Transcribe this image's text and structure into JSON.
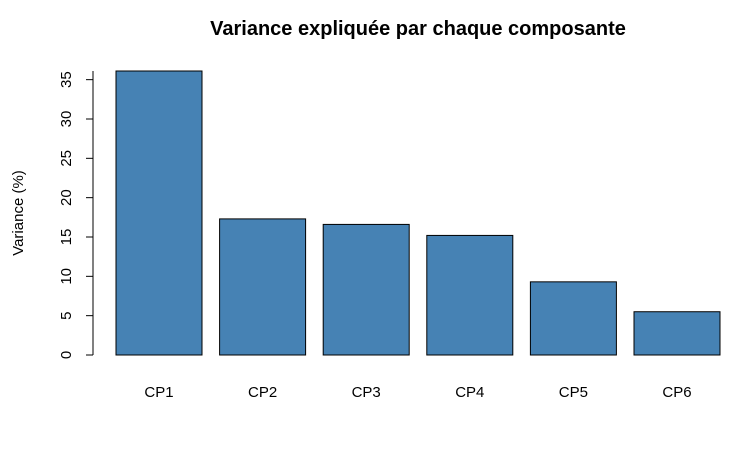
{
  "chart_data": {
    "type": "bar",
    "title": "Variance expliquée par chaque composante",
    "xlabel": "",
    "ylabel": "Variance (%)",
    "categories": [
      "CP1",
      "CP2",
      "CP3",
      "CP4",
      "CP5",
      "CP6"
    ],
    "values": [
      36.1,
      17.3,
      16.6,
      15.2,
      9.3,
      5.5
    ],
    "ylim": [
      0,
      36.1
    ],
    "yticks": [
      0,
      5,
      10,
      15,
      20,
      25,
      30,
      35
    ],
    "ytick_labels": [
      "0",
      "5",
      "10",
      "15",
      "20",
      "25",
      "30",
      "35"
    ],
    "bar_color": "#4682B4",
    "bar_border_color": "#000000",
    "grid": false,
    "legend": "none"
  }
}
